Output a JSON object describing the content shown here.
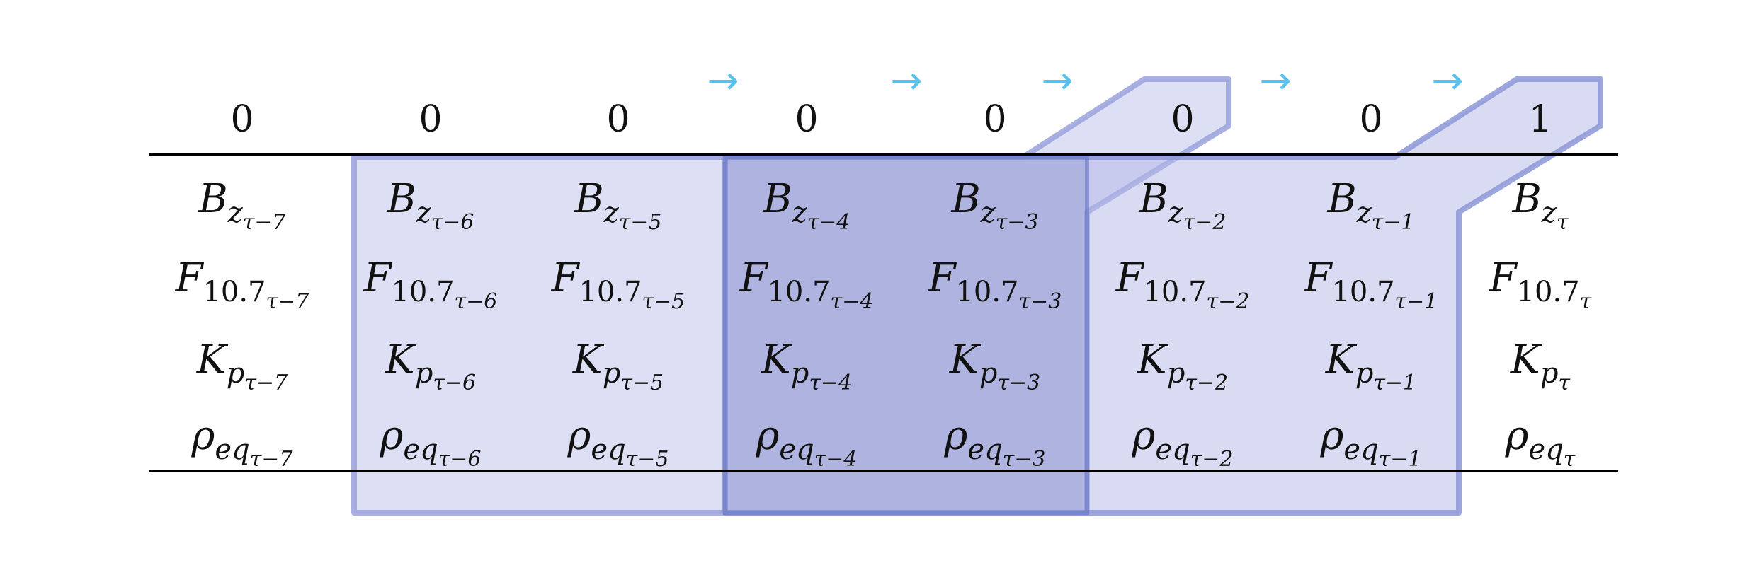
{
  "header_values": [
    "0",
    "0",
    "0",
    "0",
    "0",
    "0",
    "0",
    "1"
  ],
  "rows": [
    {
      "symbol": "B",
      "subscript": "z",
      "cells": [
        "τ−7",
        "τ−6",
        "τ−5",
        "τ−4",
        "τ−3",
        "τ−2",
        "τ−1",
        "τ"
      ]
    },
    {
      "symbol": "F",
      "subscript": "10.7",
      "cells": [
        "τ−7",
        "τ−6",
        "τ−5",
        "τ−4",
        "τ−3",
        "τ−2",
        "τ−1",
        "τ"
      ]
    },
    {
      "symbol": "K",
      "subscript": "p",
      "cells": [
        "τ−7",
        "τ−6",
        "τ−5",
        "τ−4",
        "τ−3",
        "τ−2",
        "τ−1",
        "τ"
      ]
    },
    {
      "symbol": "ρ",
      "subscript": "eq",
      "cells": [
        "τ−7",
        "τ−6",
        "τ−5",
        "τ−4",
        "τ−3",
        "τ−2",
        "τ−1",
        "τ"
      ]
    }
  ],
  "arrows": [
    "→",
    "→",
    "→",
    "→",
    "→",
    "→"
  ],
  "colors": {
    "window_light": "#b3b8e6",
    "window_light_stroke": "#9aa2dc",
    "window_mid_stroke": "#8d96d8",
    "window_dark_stroke": "#6f7cc8",
    "arrow": "#5bc0eb",
    "rule": "#000000"
  }
}
